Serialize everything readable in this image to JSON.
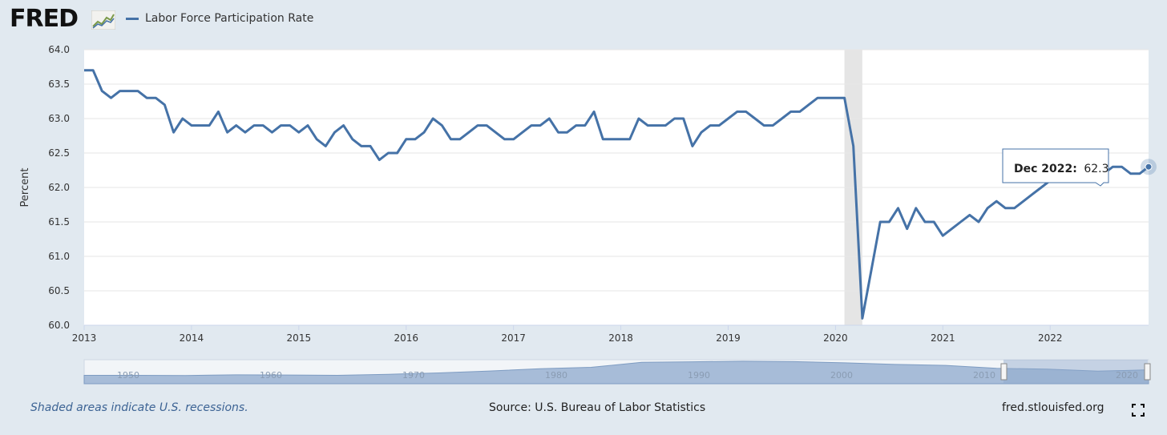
{
  "header": {
    "logo": "FRED",
    "legend_label": "Labor Force Participation Rate"
  },
  "footer": {
    "recession_note": "Shaded areas indicate U.S. recessions.",
    "source": "Source: U.S. Bureau of Labor Statistics",
    "site": "fred.stlouisfed.org"
  },
  "colors": {
    "background": "#e1e9f0",
    "plot_background": "#ffffff",
    "series": "#4572a7",
    "recession": "#e5e5e5",
    "navigator_fill": "#a7bcd8"
  },
  "icons": [
    "fred-graph-icon",
    "fullscreen-icon"
  ],
  "tooltip": {
    "date": "Dec 2022:",
    "value": "62.3"
  },
  "navigator": {
    "labels": [
      "1950",
      "1960",
      "1970",
      "1980",
      "1990",
      "2000",
      "2010",
      "2020"
    ]
  },
  "chart_data": {
    "type": "line",
    "title": "",
    "xlabel": "",
    "ylabel": "Percent",
    "ylim": [
      60.0,
      64.0
    ],
    "yticks": [
      "60.0",
      "60.5",
      "61.0",
      "61.5",
      "62.0",
      "62.5",
      "63.0",
      "63.5",
      "64.0"
    ],
    "xticks": [
      "2013",
      "2014",
      "2015",
      "2016",
      "2017",
      "2018",
      "2019",
      "2020",
      "2021",
      "2022"
    ],
    "start": "2013-01",
    "end": "2022-12",
    "grid": true,
    "legend_position": "top-left",
    "recessions": [
      {
        "start": "2020-02",
        "end": "2020-04"
      }
    ],
    "series": [
      {
        "name": "Labor Force Participation Rate",
        "frequency": "monthly",
        "x": [
          "2013-01",
          "2013-02",
          "2013-03",
          "2013-04",
          "2013-05",
          "2013-06",
          "2013-07",
          "2013-08",
          "2013-09",
          "2013-10",
          "2013-11",
          "2013-12",
          "2014-01",
          "2014-02",
          "2014-03",
          "2014-04",
          "2014-05",
          "2014-06",
          "2014-07",
          "2014-08",
          "2014-09",
          "2014-10",
          "2014-11",
          "2014-12",
          "2015-01",
          "2015-02",
          "2015-03",
          "2015-04",
          "2015-05",
          "2015-06",
          "2015-07",
          "2015-08",
          "2015-09",
          "2015-10",
          "2015-11",
          "2015-12",
          "2016-01",
          "2016-02",
          "2016-03",
          "2016-04",
          "2016-05",
          "2016-06",
          "2016-07",
          "2016-08",
          "2016-09",
          "2016-10",
          "2016-11",
          "2016-12",
          "2017-01",
          "2017-02",
          "2017-03",
          "2017-04",
          "2017-05",
          "2017-06",
          "2017-07",
          "2017-08",
          "2017-09",
          "2017-10",
          "2017-11",
          "2017-12",
          "2018-01",
          "2018-02",
          "2018-03",
          "2018-04",
          "2018-05",
          "2018-06",
          "2018-07",
          "2018-08",
          "2018-09",
          "2018-10",
          "2018-11",
          "2018-12",
          "2019-01",
          "2019-02",
          "2019-03",
          "2019-04",
          "2019-05",
          "2019-06",
          "2019-07",
          "2019-08",
          "2019-09",
          "2019-10",
          "2019-11",
          "2019-12",
          "2020-01",
          "2020-02",
          "2020-03",
          "2020-04",
          "2020-05",
          "2020-06",
          "2020-07",
          "2020-08",
          "2020-09",
          "2020-10",
          "2020-11",
          "2020-12",
          "2021-01",
          "2021-02",
          "2021-03",
          "2021-04",
          "2021-05",
          "2021-06",
          "2021-07",
          "2021-08",
          "2021-09",
          "2021-10",
          "2021-11",
          "2021-12",
          "2022-01",
          "2022-02",
          "2022-03",
          "2022-04",
          "2022-05",
          "2022-06",
          "2022-07",
          "2022-08",
          "2022-09",
          "2022-10",
          "2022-11",
          "2022-12"
        ],
        "values": [
          63.7,
          63.7,
          63.4,
          63.3,
          63.4,
          63.4,
          63.4,
          63.3,
          63.3,
          63.2,
          62.8,
          63.0,
          62.9,
          62.9,
          62.9,
          63.1,
          62.8,
          62.9,
          62.8,
          62.9,
          62.9,
          62.8,
          62.9,
          62.9,
          62.8,
          62.9,
          62.7,
          62.6,
          62.8,
          62.9,
          62.7,
          62.6,
          62.6,
          62.4,
          62.5,
          62.5,
          62.7,
          62.7,
          62.8,
          63.0,
          62.9,
          62.7,
          62.7,
          62.8,
          62.9,
          62.9,
          62.8,
          62.7,
          62.7,
          62.8,
          62.9,
          62.9,
          63.0,
          62.8,
          62.8,
          62.9,
          62.9,
          63.1,
          62.7,
          62.7,
          62.7,
          62.7,
          63.0,
          62.9,
          62.9,
          62.9,
          63.0,
          63.0,
          62.6,
          62.8,
          62.9,
          62.9,
          63.0,
          63.1,
          63.1,
          63.0,
          62.9,
          62.9,
          63.0,
          63.1,
          63.1,
          63.2,
          63.3,
          63.3,
          63.3,
          63.3,
          62.6,
          60.1,
          60.8,
          61.5,
          61.5,
          61.7,
          61.4,
          61.7,
          61.5,
          61.5,
          61.3,
          61.4,
          61.5,
          61.6,
          61.5,
          61.7,
          61.8,
          61.7,
          61.7,
          61.8,
          61.9,
          62.0,
          62.1,
          62.3,
          62.4,
          62.3,
          62.3,
          62.2,
          62.2,
          62.3,
          62.3,
          62.2,
          62.2,
          62.3
        ]
      }
    ]
  }
}
